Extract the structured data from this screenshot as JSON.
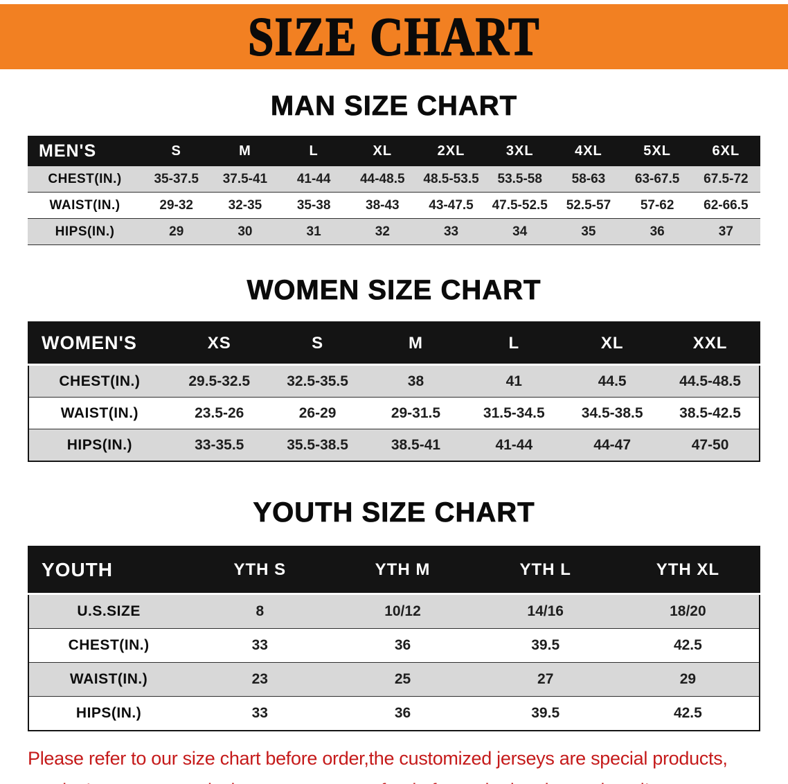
{
  "banner": {
    "title": "SIZE CHART"
  },
  "sections": [
    {
      "id": "men",
      "heading": "MAN SIZE CHART",
      "header": [
        "MEN'S",
        "S",
        "M",
        "L",
        "XL",
        "2XL",
        "3XL",
        "4XL",
        "5XL",
        "6XL"
      ],
      "rows": [
        [
          "CHEST(IN.)",
          "35-37.5",
          "37.5-41",
          "41-44",
          "44-48.5",
          "48.5-53.5",
          "53.5-58",
          "58-63",
          "63-67.5",
          "67.5-72"
        ],
        [
          "WAIST(IN.)",
          "29-32",
          "32-35",
          "35-38",
          "38-43",
          "43-47.5",
          "47.5-52.5",
          "52.5-57",
          "57-62",
          "62-66.5"
        ],
        [
          "HIPS(IN.)",
          "29",
          "30",
          "31",
          "32",
          "33",
          "34",
          "35",
          "36",
          "37"
        ]
      ]
    },
    {
      "id": "women",
      "heading": "WOMEN SIZE CHART",
      "header": [
        "WOMEN'S",
        "XS",
        "S",
        "M",
        "L",
        "XL",
        "XXL"
      ],
      "rows": [
        [
          "CHEST(IN.)",
          "29.5-32.5",
          "32.5-35.5",
          "38",
          "41",
          "44.5",
          "44.5-48.5"
        ],
        [
          "WAIST(IN.)",
          "23.5-26",
          "26-29",
          "29-31.5",
          "31.5-34.5",
          "34.5-38.5",
          "38.5-42.5"
        ],
        [
          "HIPS(IN.)",
          "33-35.5",
          "35.5-38.5",
          "38.5-41",
          "41-44",
          "44-47",
          "47-50"
        ]
      ]
    },
    {
      "id": "youth",
      "heading": "YOUTH SIZE CHART",
      "header": [
        "YOUTH",
        "YTH S",
        "YTH M",
        "YTH L",
        "YTH XL"
      ],
      "rows": [
        [
          "U.S.SIZE",
          "8",
          "10/12",
          "14/16",
          "18/20"
        ],
        [
          "CHEST(IN.)",
          "33",
          "36",
          "39.5",
          "42.5"
        ],
        [
          "WAIST(IN.)",
          "23",
          "25",
          "27",
          "29"
        ],
        [
          "HIPS(IN.)",
          "33",
          "36",
          "39.5",
          "42.5"
        ]
      ]
    }
  ],
  "footer": {
    "line1": "Please refer to our size chart before order,the customized jerseys are special products,",
    "line2": "we don't accept cancel, change, teturn or refund after order has been placed!"
  },
  "colors": {
    "banner_orange": "#F28022",
    "table_header_black": "#141414",
    "row_stripe_gray": "#D8D8D8",
    "note_red": "#C51A1A"
  }
}
